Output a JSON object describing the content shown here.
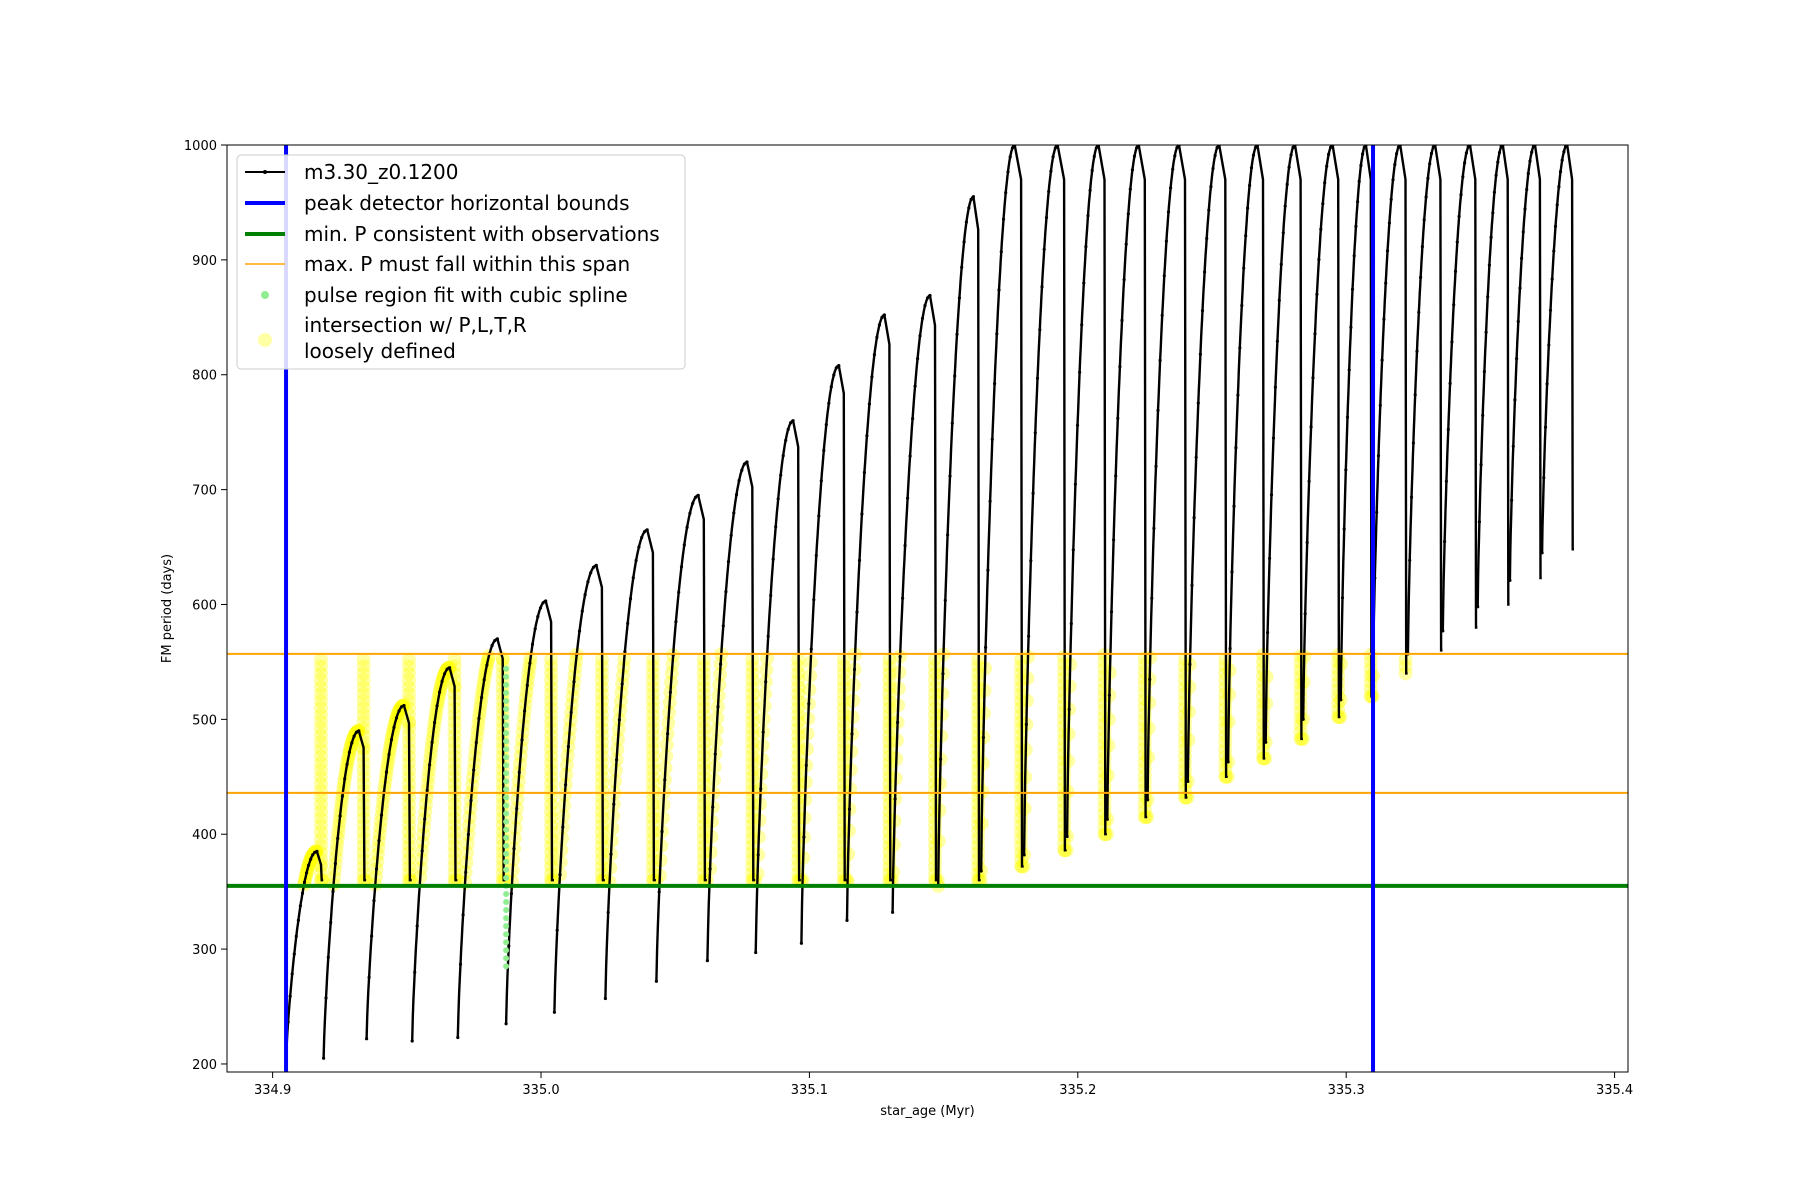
{
  "chart_data": {
    "type": "line",
    "xlabel": "star_age (Myr)",
    "ylabel": "FM period (days)",
    "xlim": [
      334.883,
      335.405
    ],
    "ylim": [
      193,
      1000
    ],
    "xticks": [
      334.9,
      335.0,
      335.1,
      335.2,
      335.3,
      335.4
    ],
    "xtick_labels": [
      "334.9",
      "335.0",
      "335.1",
      "335.2",
      "335.3",
      "335.4"
    ],
    "yticks": [
      200,
      300,
      400,
      500,
      600,
      700,
      800,
      900,
      1000
    ],
    "ytick_labels": [
      "200",
      "300",
      "400",
      "500",
      "600",
      "700",
      "800",
      "900",
      "1000"
    ],
    "grid": false,
    "legend_position": "top-left",
    "colors": {
      "track": "#000000",
      "bounds": "#0000ff",
      "min_p": "#008000",
      "max_p": "#ffa500",
      "spline": "#90ee90",
      "intersection": "#ffff00"
    },
    "legend": [
      {
        "key": "track",
        "label": "m3.30_z0.1200"
      },
      {
        "key": "bounds",
        "label": "peak detector horizontal bounds"
      },
      {
        "key": "min_p",
        "label": "min. P consistent with observations"
      },
      {
        "key": "max_p",
        "label": "max. P must fall within this span"
      },
      {
        "key": "spline",
        "label": "pulse region fit with cubic spline"
      },
      {
        "key": "intersection",
        "label": "intersection w/ P,L,T,R",
        "label2": "loosely defined"
      }
    ],
    "vertical_lines": [
      334.905,
      335.31
    ],
    "min_period": 355,
    "max_period_span": [
      436,
      557
    ],
    "spline_region": {
      "x": 334.987,
      "ymin": 285,
      "ymax": 545
    },
    "pulses": [
      {
        "start": 334.905,
        "period_peak": 385,
        "period_min": 203,
        "period_drop": 360
      },
      {
        "start": 334.919,
        "period_peak": 490,
        "period_min": 205,
        "period_drop": 360
      },
      {
        "start": 334.935,
        "period_peak": 512,
        "period_min": 222,
        "period_drop": 360
      },
      {
        "start": 334.952,
        "period_peak": 545,
        "period_min": 220,
        "period_drop": 360
      },
      {
        "start": 334.969,
        "period_peak": 570,
        "period_min": 223,
        "period_drop": 360
      },
      {
        "start": 334.987,
        "period_peak": 603,
        "period_min": 235,
        "period_drop": 360
      },
      {
        "start": 335.005,
        "period_peak": 634,
        "period_min": 245,
        "period_drop": 360
      },
      {
        "start": 335.024,
        "period_peak": 665,
        "period_min": 257,
        "period_drop": 360
      },
      {
        "start": 335.043,
        "period_peak": 695,
        "period_min": 272,
        "period_drop": 360
      },
      {
        "start": 335.062,
        "period_peak": 724,
        "period_min": 290,
        "period_drop": 360
      },
      {
        "start": 335.08,
        "period_peak": 760,
        "period_min": 297,
        "period_drop": 360
      },
      {
        "start": 335.097,
        "period_peak": 808,
        "period_min": 305,
        "period_drop": 360
      },
      {
        "start": 335.114,
        "period_peak": 852,
        "period_min": 325,
        "period_drop": 360
      },
      {
        "start": 335.131,
        "period_peak": 869,
        "period_min": 332,
        "period_drop": 360
      },
      {
        "start": 335.148,
        "period_peak": 955,
        "period_min": 355,
        "period_drop": 360
      },
      {
        "start": 335.164,
        "period_peak": 1000,
        "period_min": 368,
        "period_drop": 372
      },
      {
        "start": 335.18,
        "period_peak": 1000,
        "period_min": 382,
        "period_drop": 386
      },
      {
        "start": 335.196,
        "period_peak": 1000,
        "period_min": 398,
        "period_drop": 400
      },
      {
        "start": 335.211,
        "period_peak": 1000,
        "period_min": 413,
        "period_drop": 415
      },
      {
        "start": 335.226,
        "period_peak": 1000,
        "period_min": 430,
        "period_drop": 432
      },
      {
        "start": 335.241,
        "period_peak": 1000,
        "period_min": 446,
        "period_drop": 450
      },
      {
        "start": 335.256,
        "period_peak": 1000,
        "period_min": 463,
        "period_drop": 466
      },
      {
        "start": 335.27,
        "period_peak": 1000,
        "period_min": 480,
        "period_drop": 483
      },
      {
        "start": 335.284,
        "period_peak": 1000,
        "period_min": 500,
        "period_drop": 502
      },
      {
        "start": 335.298,
        "period_peak": 1000,
        "period_min": 517,
        "period_drop": 520
      },
      {
        "start": 335.31,
        "period_peak": 1000,
        "period_min": 538,
        "period_drop": 540
      },
      {
        "start": 335.323,
        "period_peak": 1000,
        "period_min": 557,
        "period_drop": 560
      },
      {
        "start": 335.336,
        "period_peak": 1000,
        "period_min": 577,
        "period_drop": 580
      },
      {
        "start": 335.349,
        "period_peak": 1000,
        "period_min": 598,
        "period_drop": 600
      },
      {
        "start": 335.361,
        "period_peak": 1000,
        "period_min": 621,
        "period_drop": 623
      },
      {
        "start": 335.373,
        "period_peak": 1000,
        "period_min": 645,
        "period_drop": 648
      }
    ]
  }
}
